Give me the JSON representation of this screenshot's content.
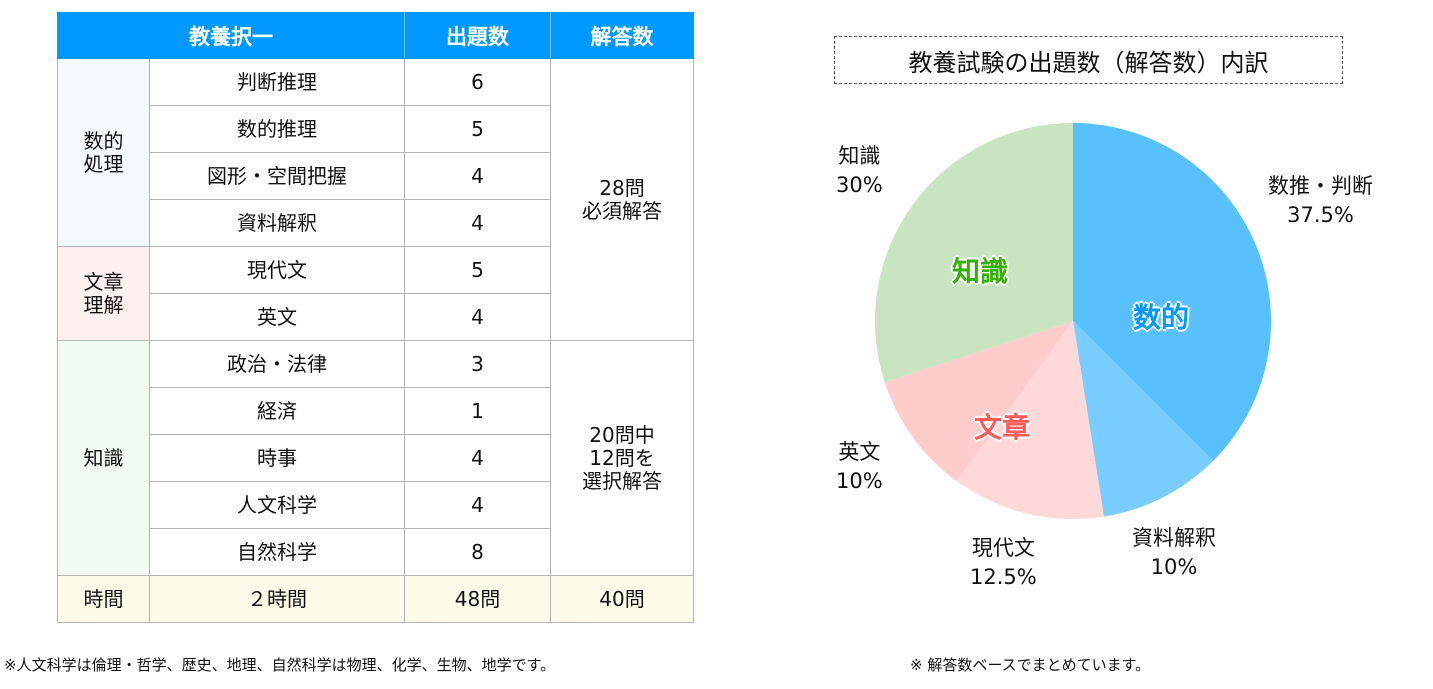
{
  "table": {
    "headers": [
      "教養択一",
      "出題数",
      "解答数"
    ],
    "groups": [
      {
        "name_line1": "数的",
        "name_line2": "処理",
        "color": "#f4f9ff"
      },
      {
        "name_line1": "文章",
        "name_line2": "理解",
        "color": "#fff0f0"
      },
      {
        "name": "知識",
        "color": "#f2fbf2"
      }
    ],
    "rows": [
      {
        "subject": "判断推理",
        "count": "6"
      },
      {
        "subject": "数的推理",
        "count": "5"
      },
      {
        "subject": "図形・空間把握",
        "count": "4"
      },
      {
        "subject": "資料解釈",
        "count": "4"
      },
      {
        "subject": "現代文",
        "count": "5"
      },
      {
        "subject": "英文",
        "count": "4"
      },
      {
        "subject": "政治・法律",
        "count": "3"
      },
      {
        "subject": "経済",
        "count": "1"
      },
      {
        "subject": "時事",
        "count": "4"
      },
      {
        "subject": "人文科学",
        "count": "4"
      },
      {
        "subject": "自然科学",
        "count": "8"
      }
    ],
    "answer_blocks": [
      {
        "line1": "28問",
        "line2": "必須解答"
      },
      {
        "line1": "20問中",
        "line2": "12問を",
        "line3": "選択解答"
      }
    ],
    "footer": {
      "label": "時間",
      "time": "２時間",
      "total_questions": "48問",
      "total_answers": "40問"
    },
    "header_color": "#0099ff"
  },
  "notes": {
    "left": "※人文科学は倫理・哲学、歴史、地理、自然科学は物理、化学、生物、地学です。",
    "right": "※ 解答数ベースでまとめています。"
  },
  "chart_data": {
    "type": "pie",
    "title": "教養試験の出題数（解答数）内訳",
    "start_angle": "12 o'clock, clockwise",
    "slices": [
      {
        "label": "数推・判断",
        "value": 37.5,
        "display": "37.5%",
        "color": "#57c0fd",
        "group": "数的"
      },
      {
        "label": "資料解釈",
        "value": 10,
        "display": "10%",
        "color": "#78ccfe",
        "group": "数的"
      },
      {
        "label": "現代文",
        "value": 12.5,
        "display": "12.5%",
        "color": "#ffd9d9",
        "group": "文章"
      },
      {
        "label": "英文",
        "value": 10,
        "display": "10%",
        "color": "#ffcccc",
        "group": "文章"
      },
      {
        "label": "知識",
        "value": 30,
        "display": "30%",
        "color": "#c8e4c0",
        "group": "知識"
      }
    ],
    "group_labels": [
      {
        "text": "数的",
        "color": "#0099ff"
      },
      {
        "text": "文章",
        "color": "#ff5a5a"
      },
      {
        "text": "知識",
        "color": "#33b000"
      }
    ],
    "legend": "none (outside labels)"
  }
}
